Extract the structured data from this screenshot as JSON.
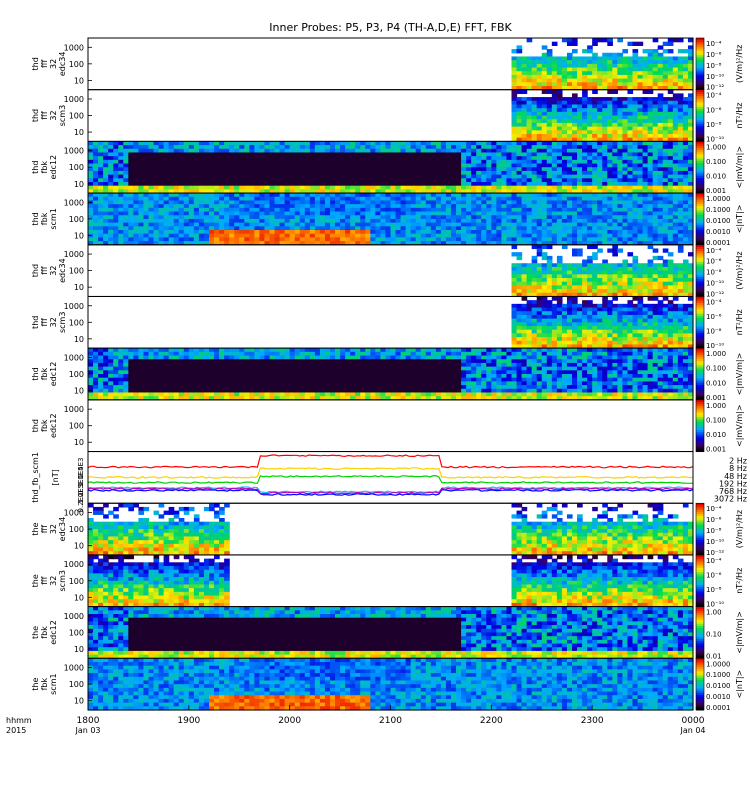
{
  "chart_data": {
    "type": "heatmap",
    "title": "Inner Probes: P5, P3, P4 (TH-A,D,E) FFT, FBK",
    "x_axis": {
      "range": [
        1800,
        2400
      ],
      "ticks": [
        "1800",
        "1900",
        "2000",
        "2100",
        "2200",
        "2300",
        "0000"
      ],
      "date_labels": [
        "Jan 03",
        "Jan 04"
      ],
      "label_left": [
        "hhmm",
        "2015"
      ]
    },
    "y_ticks": [
      "1000",
      "100",
      "10"
    ],
    "line_panel_ticks": [
      "2.5E3",
      "1.0E4",
      "0.5E1",
      "1.0E3",
      "0.2E2"
    ],
    "panels": [
      {
        "label": [
          "thd",
          "fff",
          "32",
          "edc34"
        ],
        "units": "(V/m)²/Hz",
        "scale": [
          "10⁻⁴",
          "10⁻⁶",
          "10⁻⁸",
          "10⁻¹⁰",
          "10⁻¹²"
        ],
        "start": 2220,
        "end": 2400,
        "type": "ffh"
      },
      {
        "label": [
          "thd",
          "fff",
          "32",
          "scm3"
        ],
        "units": "nT²/Hz",
        "scale": [
          "10⁻⁴",
          "10⁻⁶",
          "10⁻⁸",
          "10⁻¹⁰"
        ],
        "start": 2220,
        "end": 2400,
        "type": "ffm"
      },
      {
        "label": [
          "thd",
          "fbk",
          "edc12"
        ],
        "units": "<|mV/m|>",
        "scale": [
          "1.000",
          "0.100",
          "0.010",
          "0.001"
        ],
        "start": 1800,
        "end": 2400,
        "type": "fbe"
      },
      {
        "label": [
          "thd",
          "fbk",
          "scm1"
        ],
        "units": "<|nT|>",
        "scale": [
          "1.0000",
          "0.1000",
          "0.0100",
          "0.0010",
          "0.0001"
        ],
        "start": 1800,
        "end": 2400,
        "type": "fbs"
      },
      {
        "label": [
          "thd",
          "fff",
          "32",
          "edc34"
        ],
        "units": "(V/m)²/Hz",
        "scale": [
          "10⁻⁴",
          "10⁻⁶",
          "10⁻⁸",
          "10⁻¹⁰",
          "10⁻¹²"
        ],
        "start": 2220,
        "end": 2400,
        "type": "ffh"
      },
      {
        "label": [
          "thd",
          "fff",
          "32",
          "scm3"
        ],
        "units": "nT²/Hz",
        "scale": [
          "10⁻⁴",
          "10⁻⁶",
          "10⁻⁸",
          "10⁻¹⁰"
        ],
        "start": 2220,
        "end": 2400,
        "type": "ffm"
      },
      {
        "label": [
          "thd",
          "fbk",
          "edc12"
        ],
        "units": "<|mV/m|>",
        "scale": [
          "1.000",
          "0.100",
          "0.010",
          "0.001"
        ],
        "start": 1800,
        "end": 2400,
        "type": "fbe"
      },
      {
        "label": [
          "thd",
          "fbk",
          "edc12"
        ],
        "units": "<|mV/m|>",
        "scale": [
          "1.000",
          "0.100",
          "0.010",
          "0.001"
        ],
        "start": 0,
        "end": 0,
        "type": "empty"
      },
      {
        "label": [
          "thd_fb_scm1"
        ],
        "units": "[nT]",
        "type": "line"
      },
      {
        "label": [
          "the",
          "fff",
          "32",
          "edc34"
        ],
        "units": "(V/m)²/Hz",
        "scale": [
          "10⁻⁴",
          "10⁻⁶",
          "10⁻⁸",
          "10⁻¹⁰",
          "10⁻¹²"
        ],
        "start": 1800,
        "end": 2400,
        "gap": [
          1940,
          2220
        ],
        "type": "ffh2"
      },
      {
        "label": [
          "the",
          "fff",
          "32",
          "scm3"
        ],
        "units": "nT²/Hz",
        "scale": [
          "10⁻⁴",
          "10⁻⁶",
          "10⁻⁸",
          "10⁻¹⁰"
        ],
        "start": 1800,
        "end": 2400,
        "gap": [
          1940,
          2220
        ],
        "type": "ffm"
      },
      {
        "label": [
          "the",
          "fbk",
          "edc12"
        ],
        "units": "<|mV/m|>",
        "scale": [
          "1.00",
          "0.10",
          "0.01"
        ],
        "start": 1800,
        "end": 2400,
        "type": "fbe"
      },
      {
        "label": [
          "the",
          "fbk",
          "scm1"
        ],
        "units": "<|nT|>",
        "scale": [
          "1.0000",
          "0.1000",
          "0.0100",
          "0.0010",
          "0.0001"
        ],
        "start": 1800,
        "end": 2400,
        "type": "fbs"
      }
    ],
    "line_series": [
      {
        "name": "2 Hz",
        "color": "#ff0000"
      },
      {
        "name": "8 Hz",
        "color": "#ffd000"
      },
      {
        "name": "48 Hz",
        "color": "#00d000"
      },
      {
        "name": "192 Hz",
        "color": "#00c8ff"
      },
      {
        "name": "768 Hz",
        "color": "#0000ff"
      },
      {
        "name": "3072 Hz",
        "color": "#c000c0"
      }
    ]
  }
}
